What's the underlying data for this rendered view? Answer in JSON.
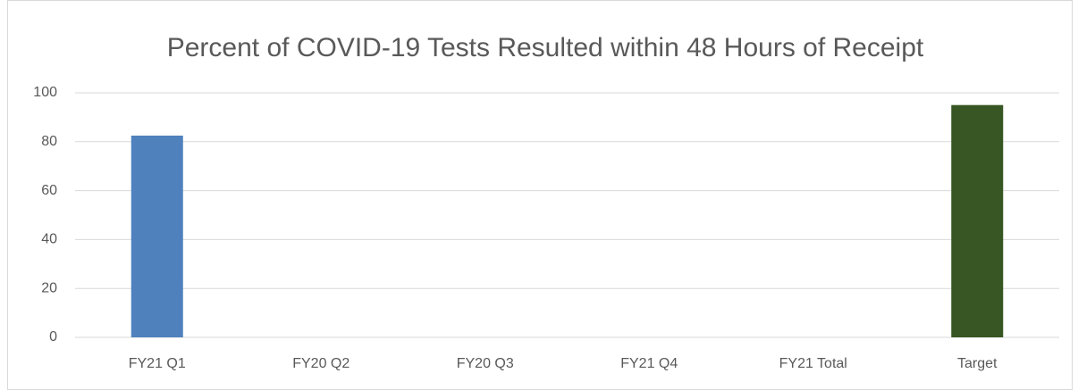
{
  "chart_data": {
    "type": "bar",
    "title": "Percent of COVID-19 Tests Resulted within 48 Hours of Receipt",
    "categories": [
      "FY21 Q1",
      "FY20 Q2",
      "FY20 Q3",
      "FY21 Q4",
      "FY21 Total",
      "Target"
    ],
    "values": [
      82.5,
      null,
      null,
      null,
      null,
      95
    ],
    "colors": [
      "#4f81bd",
      null,
      null,
      null,
      null,
      "#375623"
    ],
    "ylim": [
      0,
      100
    ],
    "yticks": [
      0,
      20,
      40,
      60,
      80,
      100
    ],
    "grid": true
  }
}
